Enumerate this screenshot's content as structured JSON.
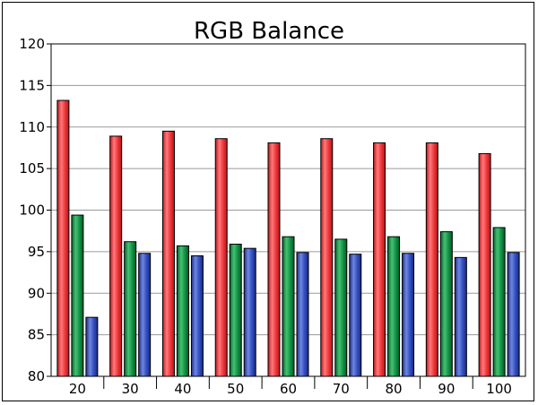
{
  "chart_data": {
    "type": "bar",
    "title": "RGB Balance",
    "xlabel": "",
    "ylabel": "",
    "categories": [
      "20",
      "30",
      "40",
      "50",
      "60",
      "70",
      "80",
      "90",
      "100"
    ],
    "series": [
      {
        "color": "#e8262a",
        "values": [
          113.2,
          108.9,
          109.5,
          108.6,
          108.1,
          108.6,
          108.1,
          108.1,
          106.8
        ]
      },
      {
        "color": "#0e8a3c",
        "values": [
          99.4,
          96.2,
          95.7,
          95.9,
          96.8,
          96.5,
          96.8,
          97.4,
          97.9
        ]
      },
      {
        "color": "#2a44b8",
        "values": [
          87.1,
          94.8,
          94.5,
          95.4,
          94.9,
          94.7,
          94.8,
          94.3,
          94.9
        ]
      }
    ],
    "ylim": [
      80,
      120
    ],
    "yticks": [
      80,
      85,
      90,
      95,
      100,
      105,
      110,
      115,
      120
    ],
    "grid": true,
    "legend": "none"
  }
}
